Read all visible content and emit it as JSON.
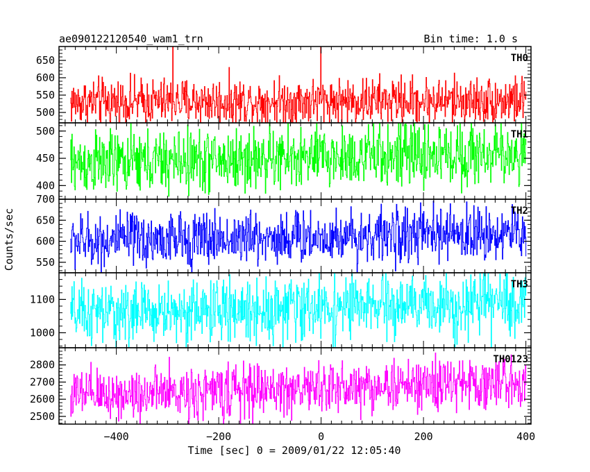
{
  "header": {
    "title": "ae090122120540_wam1_trn",
    "bin_time": "Bin time: 1.0 s"
  },
  "axes": {
    "xlabel": "Time [sec] 0 = 2009/01/22 12:05:40",
    "ylabel": "Counts/sec"
  },
  "chart_data": [
    {
      "type": "line",
      "name": "TH0",
      "color": "#ff0000",
      "xlim": [
        -512,
        410
      ],
      "ylim": [
        470,
        690
      ],
      "yticks": [
        500,
        550,
        600,
        650
      ],
      "xticks": [
        -400,
        -200,
        0,
        200,
        400
      ],
      "x_range": [
        -490,
        400
      ],
      "bin_seconds": 1.0,
      "baseline": 530,
      "trend_end": 535,
      "noise_amplitude": 42,
      "spikes": [
        {
          "x": -290,
          "y": 690
        },
        {
          "x": -1,
          "y": 690
        }
      ]
    },
    {
      "type": "line",
      "name": "TH1",
      "color": "#00ff00",
      "xlim": [
        -512,
        410
      ],
      "ylim": [
        375,
        515
      ],
      "yticks": [
        400,
        450,
        500
      ],
      "xticks": [
        -400,
        -200,
        0,
        200,
        400
      ],
      "x_range": [
        -490,
        400
      ],
      "bin_seconds": 1.0,
      "baseline": 440,
      "trend_end": 460,
      "noise_amplitude": 36,
      "spikes": []
    },
    {
      "type": "line",
      "name": "TH2",
      "color": "#0000ff",
      "xlim": [
        -512,
        410
      ],
      "ylim": [
        525,
        700
      ],
      "yticks": [
        550,
        600,
        650,
        700
      ],
      "xticks": [
        -400,
        -200,
        0,
        200,
        400
      ],
      "x_range": [
        -490,
        400
      ],
      "bin_seconds": 1.0,
      "baseline": 600,
      "trend_end": 620,
      "noise_amplitude": 40,
      "spikes": []
    },
    {
      "type": "line",
      "name": "TH3",
      "color": "#00ffff",
      "xlim": [
        -512,
        410
      ],
      "ylim": [
        955,
        1180
      ],
      "yticks": [
        1000,
        1100
      ],
      "xticks": [
        -400,
        -200,
        0,
        200,
        400
      ],
      "x_range": [
        -490,
        400
      ],
      "bin_seconds": 1.0,
      "baseline": 1055,
      "trend_end": 1090,
      "noise_amplitude": 58,
      "spikes": []
    },
    {
      "type": "line",
      "name": "TH0123",
      "color": "#ff00ff",
      "xlim": [
        -512,
        410
      ],
      "ylim": [
        2455,
        2900
      ],
      "yticks": [
        2500,
        2600,
        2700,
        2800
      ],
      "xticks": [
        -400,
        -200,
        0,
        200,
        400
      ],
      "x_range": [
        -490,
        400
      ],
      "bin_seconds": 1.0,
      "baseline": 2620,
      "trend_end": 2700,
      "noise_amplitude": 95,
      "spikes": []
    }
  ]
}
